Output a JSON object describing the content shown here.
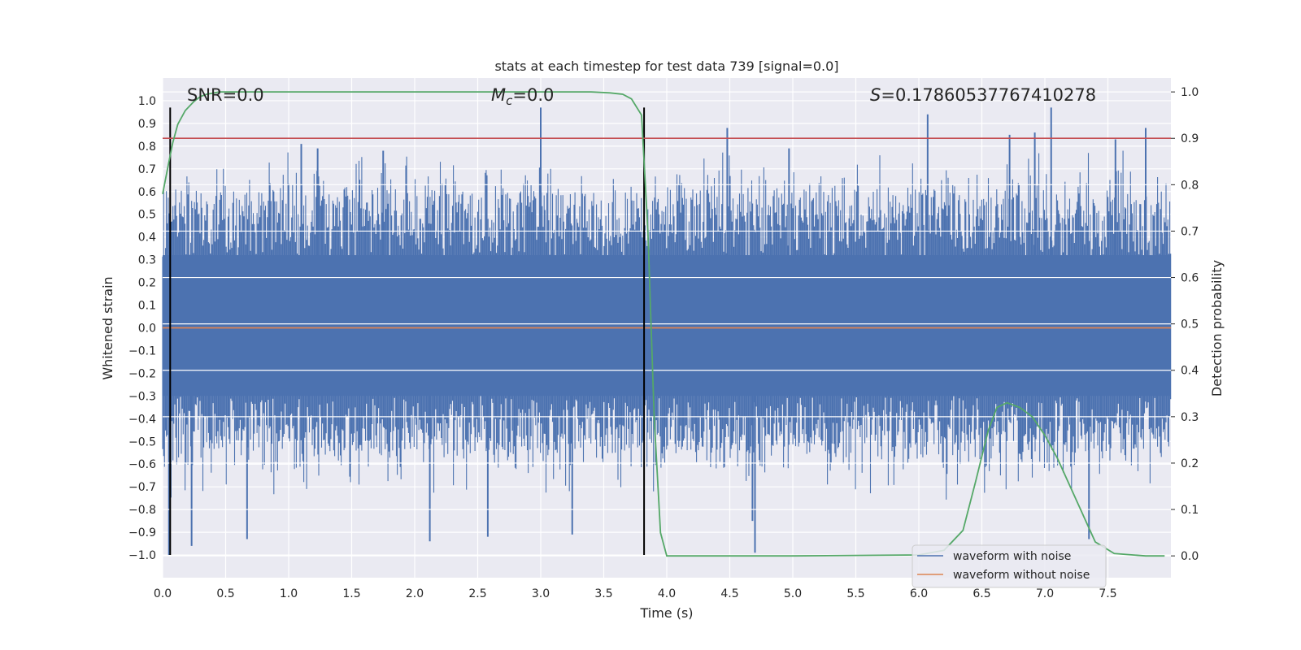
{
  "chart_data": {
    "type": "line",
    "title": "stats at each timestep for test data 739 [signal=0.0]",
    "xlabel": "Time (s)",
    "ylabel": "Whitened strain",
    "y2label": "Detection probability",
    "xlim": [
      0.0,
      8.0
    ],
    "ylim": [
      -1.1,
      1.1
    ],
    "y2lim": [
      -0.047,
      1.03
    ],
    "xticks": [
      "0.0",
      "0.5",
      "1.0",
      "1.5",
      "2.0",
      "2.5",
      "3.0",
      "3.5",
      "4.0",
      "4.5",
      "5.0",
      "5.5",
      "6.0",
      "6.5",
      "7.0",
      "7.5"
    ],
    "yticks": [
      "1.0",
      "0.9",
      "0.8",
      "0.7",
      "0.6",
      "0.5",
      "0.4",
      "0.3",
      "0.2",
      "0.1",
      "0.0",
      "-0.1",
      "-0.2",
      "-0.3",
      "-0.4",
      "-0.5",
      "-0.6",
      "-0.7",
      "-0.8",
      "-0.9",
      "-1.0"
    ],
    "y2ticks": [
      "1.0",
      "0.9",
      "0.8",
      "0.7",
      "0.6",
      "0.5",
      "0.4",
      "0.3",
      "0.2",
      "0.1",
      "0.0"
    ],
    "annotations": {
      "snr_label": "SNR=0.0",
      "mc_sym": "M",
      "mc_sub": "c",
      "mc_value": "=0.0",
      "s_sym": "S",
      "s_value": "=0.17860537767410278"
    },
    "legend": {
      "position": "lower right",
      "entries": [
        {
          "label": "waveform with noise",
          "color": "#4c72b0"
        },
        {
          "label": "waveform without noise",
          "color": "#dd8452"
        }
      ]
    },
    "series": [
      {
        "name": "waveform with noise",
        "kind": "noise-envelope",
        "color": "#4c72b0",
        "core_band": [
          -0.3,
          0.32
        ],
        "upper_peaks": [
          {
            "x": 3.0,
            "y": 0.97
          },
          {
            "x": 7.05,
            "y": 0.97
          },
          {
            "x": 6.07,
            "y": 0.94
          },
          {
            "x": 4.48,
            "y": 0.88
          },
          {
            "x": 7.8,
            "y": 0.88
          },
          {
            "x": 6.72,
            "y": 0.85
          },
          {
            "x": 6.92,
            "y": 0.86
          },
          {
            "x": 1.1,
            "y": 0.81
          },
          {
            "x": 7.56,
            "y": 0.83
          },
          {
            "x": 4.97,
            "y": 0.79
          },
          {
            "x": 1.75,
            "y": 0.78
          },
          {
            "x": 1.23,
            "y": 0.79
          }
        ],
        "lower_peaks": [
          {
            "x": 0.05,
            "y": -1.0
          },
          {
            "x": 0.23,
            "y": -0.96
          },
          {
            "x": 2.12,
            "y": -0.94
          },
          {
            "x": 0.67,
            "y": -0.93
          },
          {
            "x": 7.35,
            "y": -0.93
          },
          {
            "x": 4.7,
            "y": -0.99
          },
          {
            "x": 2.58,
            "y": -0.92
          },
          {
            "x": 3.25,
            "y": -0.91
          },
          {
            "x": 4.68,
            "y": -0.85
          }
        ]
      },
      {
        "name": "waveform without noise",
        "color": "#dd8452",
        "x": [
          0.0,
          8.0
        ],
        "y": [
          0.0,
          0.0
        ]
      },
      {
        "name": "detection probability",
        "axis": "right",
        "color": "#55a868",
        "x": [
          0.0,
          0.05,
          0.08,
          0.12,
          0.18,
          0.25,
          0.3,
          0.35,
          0.45,
          0.6,
          1.0,
          2.0,
          3.0,
          3.4,
          3.55,
          3.65,
          3.72,
          3.8,
          3.85,
          3.9,
          3.95,
          4.0,
          4.2,
          5.0,
          6.0,
          6.2,
          6.35,
          6.45,
          6.55,
          6.62,
          6.7,
          6.8,
          6.9,
          7.0,
          7.1,
          7.2,
          7.3,
          7.4,
          7.55,
          7.8,
          7.95
        ],
        "y": [
          0.78,
          0.85,
          0.89,
          0.93,
          0.96,
          0.98,
          0.99,
          0.995,
          1.0,
          1.0,
          1.0,
          1.0,
          1.0,
          1.0,
          0.998,
          0.995,
          0.985,
          0.95,
          0.7,
          0.3,
          0.05,
          0.0,
          0.0,
          0.0,
          0.002,
          0.012,
          0.055,
          0.16,
          0.27,
          0.32,
          0.33,
          0.32,
          0.3,
          0.26,
          0.21,
          0.15,
          0.09,
          0.03,
          0.005,
          0.0,
          0.0
        ]
      }
    ],
    "hlines": [
      {
        "axis": "right",
        "y": 0.9,
        "color": "#c44e52"
      }
    ],
    "vlines": [
      {
        "x": 0.06,
        "ymin": -1.0,
        "ymax": 0.97,
        "color": "#000000"
      },
      {
        "x": 3.82,
        "ymin": -1.0,
        "ymax": 0.97,
        "color": "#000000"
      }
    ]
  }
}
